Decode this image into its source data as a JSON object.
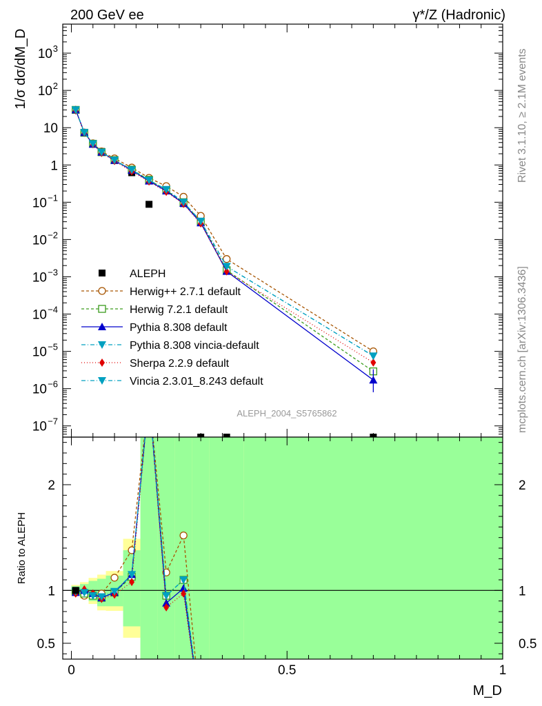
{
  "header": {
    "left_label": "200 GeV ee",
    "right_label": "γ*/Z (Hadronic)"
  },
  "side": {
    "rivet_label": "Rivet 3.1.10, ≥ 2.1M events",
    "mcplots_label": "mcplots.cern.ch [arXiv:1306.3436]"
  },
  "analysis_label": "ALEPH_2004_S5765862",
  "chart_data": [
    {
      "type": "line",
      "panel": "main",
      "ylabel": "1/σ  dσ/dM_D",
      "yscale": "log",
      "ylim": [
        5e-08,
        6000
      ],
      "xlim": [
        -0.02,
        1.0
      ],
      "x": [
        0.01,
        0.03,
        0.05,
        0.07,
        0.1,
        0.14,
        0.18,
        0.22,
        0.26,
        0.3,
        0.36,
        0.7
      ],
      "series": [
        {
          "name": "ALEPH",
          "color": "#000000",
          "marker": "square",
          "values": [
            30,
            7.5,
            3.7,
            2.3,
            1.35,
            0.62,
            0.088,
            0.22,
            0.092,
            5e-08,
            5e-08,
            5e-08
          ]
        },
        {
          "name": "Herwig++ 2.7.1 default",
          "color": "#a65400",
          "marker": "circle-open",
          "dash": "4,3",
          "values": [
            30,
            7.4,
            3.8,
            2.3,
            1.5,
            0.85,
            0.45,
            0.27,
            0.14,
            0.043,
            0.003,
            1e-05
          ]
        },
        {
          "name": "Herwig 7.2.1 default",
          "color": "#3a9c1c",
          "marker": "square-open",
          "dash": "4,3",
          "values": [
            30,
            7.3,
            3.7,
            2.2,
            1.35,
            0.75,
            0.4,
            0.21,
            0.1,
            0.03,
            0.0015,
            2.9e-06
          ]
        },
        {
          "name": "Pythia 8.308 default",
          "color": "#0000cc",
          "marker": "triangle-up",
          "dash": "",
          "values": [
            30,
            7.4,
            3.6,
            2.2,
            1.32,
            0.72,
            0.37,
            0.2,
            0.093,
            0.028,
            0.0014,
            1.7e-06
          ],
          "error_last": [
            8e-07,
            3.3e-06
          ]
        },
        {
          "name": "Pythia 8.308 vincia-default",
          "color": "#00a0c0",
          "marker": "triangle-down",
          "dash": "6,3,1,3",
          "values": [
            30,
            7.4,
            3.7,
            2.2,
            1.34,
            0.74,
            0.39,
            0.22,
            0.1,
            0.031,
            0.0019,
            7.5e-06
          ]
        },
        {
          "name": "Sherpa 2.2.9 default",
          "color": "#e00000",
          "marker": "diamond",
          "dash": "1,3",
          "values": [
            29,
            7.3,
            3.6,
            2.1,
            1.28,
            0.67,
            0.36,
            0.19,
            0.09,
            0.027,
            0.0014,
            5e-06
          ]
        },
        {
          "name": "Vincia 2.3.01_8.243 default",
          "color": "#00a0c0",
          "marker": "triangle-down",
          "dash": "6,3,1,3",
          "values": [
            30,
            7.4,
            3.7,
            2.2,
            1.34,
            0.74,
            0.39,
            0.22,
            0.1,
            0.031,
            0.0019,
            7.5e-06
          ]
        }
      ]
    },
    {
      "type": "line",
      "panel": "ratio",
      "xlabel": "M_D",
      "ylabel": "Ratio to ALEPH",
      "ylim": [
        0.35,
        2.45
      ],
      "yticks": [
        0.5,
        1,
        2
      ],
      "xticks": [
        0,
        0.5,
        1
      ],
      "x": [
        0.01,
        0.03,
        0.05,
        0.07,
        0.1,
        0.14,
        0.22,
        0.26
      ],
      "series": [
        {
          "name": "Herwig++ 2.7.1 default",
          "values": [
            0.98,
            0.95,
            0.96,
            0.97,
            1.12,
            1.38,
            1.17,
            1.52
          ]
        },
        {
          "name": "Herwig 7.2.1 default",
          "values": [
            0.99,
            0.97,
            0.95,
            0.93,
            0.98,
            1.13,
            0.95,
            1.1
          ]
        },
        {
          "name": "Pythia 8.308 default",
          "values": [
            0.98,
            1.0,
            0.97,
            0.93,
            0.98,
            1.15,
            0.88,
            1.02
          ]
        },
        {
          "name": "Pythia 8.308 vincia-default",
          "values": [
            0.99,
            0.98,
            0.95,
            0.94,
            0.99,
            1.15,
            0.95,
            1.1
          ]
        },
        {
          "name": "Sherpa 2.2.9 default",
          "values": [
            0.97,
            1.01,
            0.97,
            0.92,
            0.96,
            1.08,
            0.84,
            0.97
          ]
        },
        {
          "name": "Vincia 2.3.01_8.243 default",
          "values": [
            0.99,
            0.98,
            0.95,
            0.94,
            0.99,
            1.15,
            0.95,
            1.1
          ]
        }
      ],
      "bands": [
        {
          "x0": 0.0,
          "x1": 0.02,
          "y_lo": 0.96,
          "y_hi": 1.04
        },
        {
          "x0": 0.02,
          "x1": 0.04,
          "y_lo": 0.94,
          "y_hi": 1.06
        },
        {
          "x0": 0.04,
          "x1": 0.06,
          "y_lo": 0.9,
          "y_hi": 1.09
        },
        {
          "x0": 0.06,
          "x1": 0.08,
          "y_lo": 0.85,
          "y_hi": 1.11
        },
        {
          "x0": 0.08,
          "x1": 0.12,
          "y_lo": 0.85,
          "y_hi": 1.14
        },
        {
          "x0": 0.12,
          "x1": 0.16,
          "y_lo": 0.66,
          "y_hi": 1.38
        },
        {
          "x0": 0.16,
          "x1": 0.2,
          "y_lo": 0.3,
          "y_hi": 2.5
        },
        {
          "x0": 0.2,
          "x1": 0.24,
          "y_lo": 0.3,
          "y_hi": 2.5
        },
        {
          "x0": 0.24,
          "x1": 0.28,
          "y_lo": 0.3,
          "y_hi": 2.5
        },
        {
          "x0": 0.28,
          "x1": 0.32,
          "y_lo": 0.3,
          "y_hi": 2.5
        },
        {
          "x0": 0.32,
          "x1": 0.4,
          "y_lo": 0.3,
          "y_hi": 2.5
        },
        {
          "x0": 0.4,
          "x1": 1.0,
          "y_lo": 0.3,
          "y_hi": 2.5
        }
      ]
    }
  ]
}
